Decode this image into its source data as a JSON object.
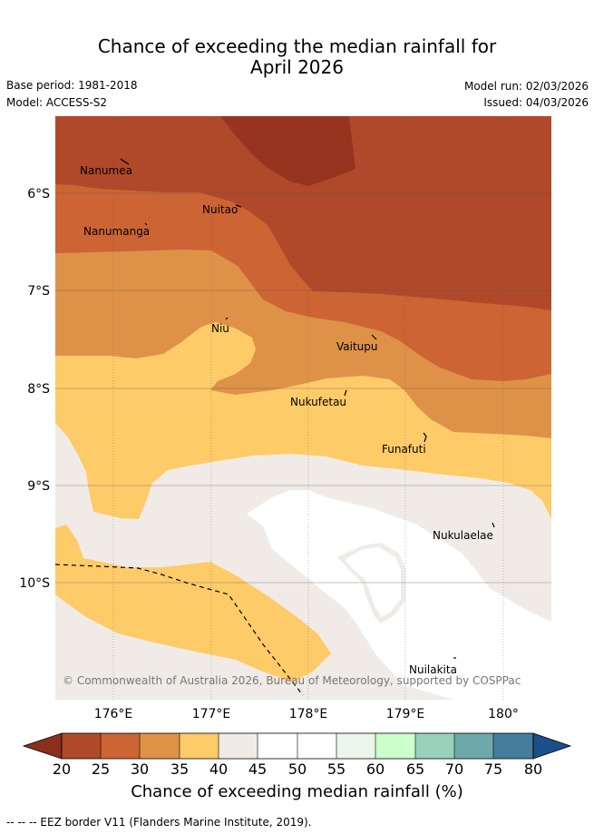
{
  "title_line1": "Chance of exceeding the median rainfall for",
  "title_line2": "April 2026",
  "meta": {
    "base_period": "Base period: 1981-2018",
    "model": "Model: ACCESS-S2",
    "model_run": "Model run: 02/03/2026",
    "issued": "Issued: 04/03/2026"
  },
  "map": {
    "lat_labels": [
      "6°S",
      "7°S",
      "8°S",
      "9°S",
      "10°S"
    ],
    "lon_labels": [
      "176°E",
      "177°E",
      "178°E",
      "179°E",
      "180°"
    ],
    "places": [
      "Nanumea",
      "Nuitao",
      "Nanumanga",
      "Niu",
      "Vaitupu",
      "Nukufetau",
      "Funafuti",
      "Nukulaelae",
      "Nuilakita"
    ],
    "copyright": "© Commonwealth of Australia 2026, Bureau of Meteorology, supported by COSPPac"
  },
  "colorbar": {
    "ticks": [
      "20",
      "25",
      "30",
      "35",
      "40",
      "45",
      "50",
      "55",
      "60",
      "65",
      "70",
      "75",
      "80"
    ],
    "colors": {
      "under": "#8b2e1c",
      "c20_25": "#b0492a",
      "c25_30": "#cd6434",
      "c30_35": "#de9248",
      "c35_40": "#fecb69",
      "c40_45": "#f0ebe6",
      "c45_50": "#ffffff",
      "c50_55": "#ffffff",
      "c55_60": "#eaf6ea",
      "c60_65": "#cbffcb",
      "c65_70": "#9ad1bd",
      "c70_75": "#6ea9aa",
      "c75_80": "#457e9c",
      "over": "#1a4f8a",
      "dark_core": "#96341f"
    },
    "label": "Chance of exceeding median rainfall (%)"
  },
  "footer": "--  --  -- EEZ border V11 (Flanders Marine Institute, 2019)."
}
